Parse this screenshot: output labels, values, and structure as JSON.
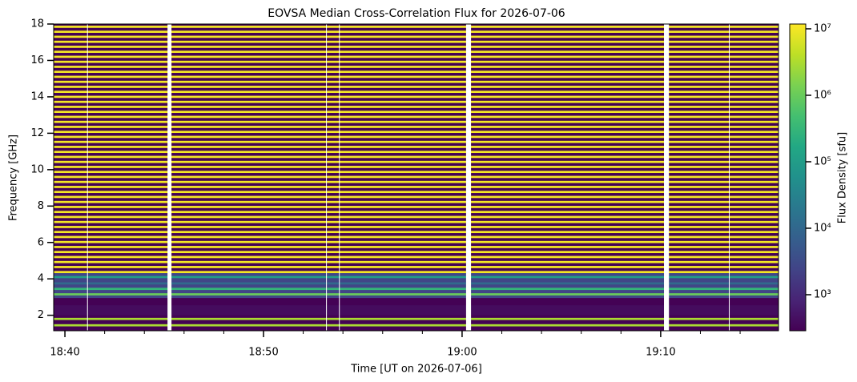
{
  "chart_data": {
    "type": "spectrogram",
    "title": "EOVSA Median Cross-Correlation Flux for 2026-07-06",
    "xlabel": "Time [UT on 2026-07-06]",
    "ylabel": "Frequency [GHz]",
    "colorbar_label": "Flux Density [sfu]",
    "colormap": "viridis",
    "color_scale": "log",
    "xlim": [
      "18:39:26",
      "19:15:56"
    ],
    "xticks": [
      "18:40",
      "18:50",
      "19:00",
      "19:10"
    ],
    "minor_xticks": [
      "18:42",
      "18:44",
      "18:46",
      "18:48",
      "18:52",
      "18:54",
      "18:56",
      "18:58",
      "19:02",
      "19:04",
      "19:06",
      "19:08",
      "19:12",
      "19:14"
    ],
    "ylim": [
      1.15,
      18
    ],
    "yticks": [
      2,
      4,
      6,
      8,
      10,
      12,
      14,
      16,
      18
    ],
    "clim": [
      287,
      11800000
    ],
    "cticks": [
      {
        "value": 1000,
        "label": "10³"
      },
      {
        "value": 10000,
        "label": "10⁴"
      },
      {
        "value": 100000,
        "label": "10⁵"
      },
      {
        "value": 1000000,
        "label": "10⁶"
      },
      {
        "value": 10000000,
        "label": "10⁷"
      }
    ],
    "background": 300,
    "regions": [
      {
        "flim": [
          2.95,
          4.35
        ],
        "value": 2500
      },
      {
        "flim": [
          2.0,
          2.55
        ],
        "value": 400
      }
    ],
    "channel_width": 0.12,
    "channel_freqs": [
      17.85,
      17.575,
      17.3,
      17.025,
      16.75,
      16.475,
      16.2,
      15.925,
      15.65,
      15.375,
      15.1,
      14.825,
      14.55,
      14.275,
      14.0,
      13.725,
      13.45,
      13.175,
      12.9,
      12.625,
      12.35,
      12.075,
      11.8,
      11.525,
      11.25,
      10.975,
      10.7,
      10.425,
      10.15,
      9.875,
      9.6,
      9.325,
      9.05,
      8.775,
      8.5,
      8.225,
      7.95,
      7.675,
      7.4,
      7.125,
      6.85,
      6.575,
      6.3,
      6.025,
      5.75,
      5.475,
      5.2,
      4.925,
      4.65,
      4.375,
      4.1,
      3.75,
      3.45,
      3.15,
      1.8,
      1.45
    ],
    "channel_values": [
      10000000,
      10000000,
      10000000,
      10000000,
      10000000,
      10000000,
      10000000,
      10000000,
      10000000,
      10000000,
      10000000,
      10000000,
      10000000,
      10000000,
      10000000,
      10000000,
      10000000,
      10000000,
      10000000,
      10000000,
      10000000,
      10000000,
      10000000,
      10000000,
      10000000,
      10000000,
      10000000,
      10000000,
      10000000,
      10000000,
      10000000,
      10000000,
      10000000,
      10000000,
      10000000,
      10000000,
      10000000,
      10000000,
      10000000,
      10000000,
      10000000,
      10000000,
      10000000,
      10000000,
      10000000,
      10000000,
      10000000,
      10000000,
      10000000,
      10000000,
      100000,
      10000,
      300000,
      1000000,
      3000000,
      3000000
    ],
    "gaps": [
      [
        "18:41:07",
        "18:41:09"
      ],
      [
        "18:45:10",
        "18:45:22"
      ],
      [
        "18:53:09",
        "18:53:11"
      ],
      [
        "18:53:48",
        "18:53:50"
      ],
      [
        "19:00:12",
        "19:00:27"
      ],
      [
        "19:10:10",
        "19:10:25"
      ],
      [
        "19:13:26",
        "19:13:28"
      ]
    ]
  }
}
